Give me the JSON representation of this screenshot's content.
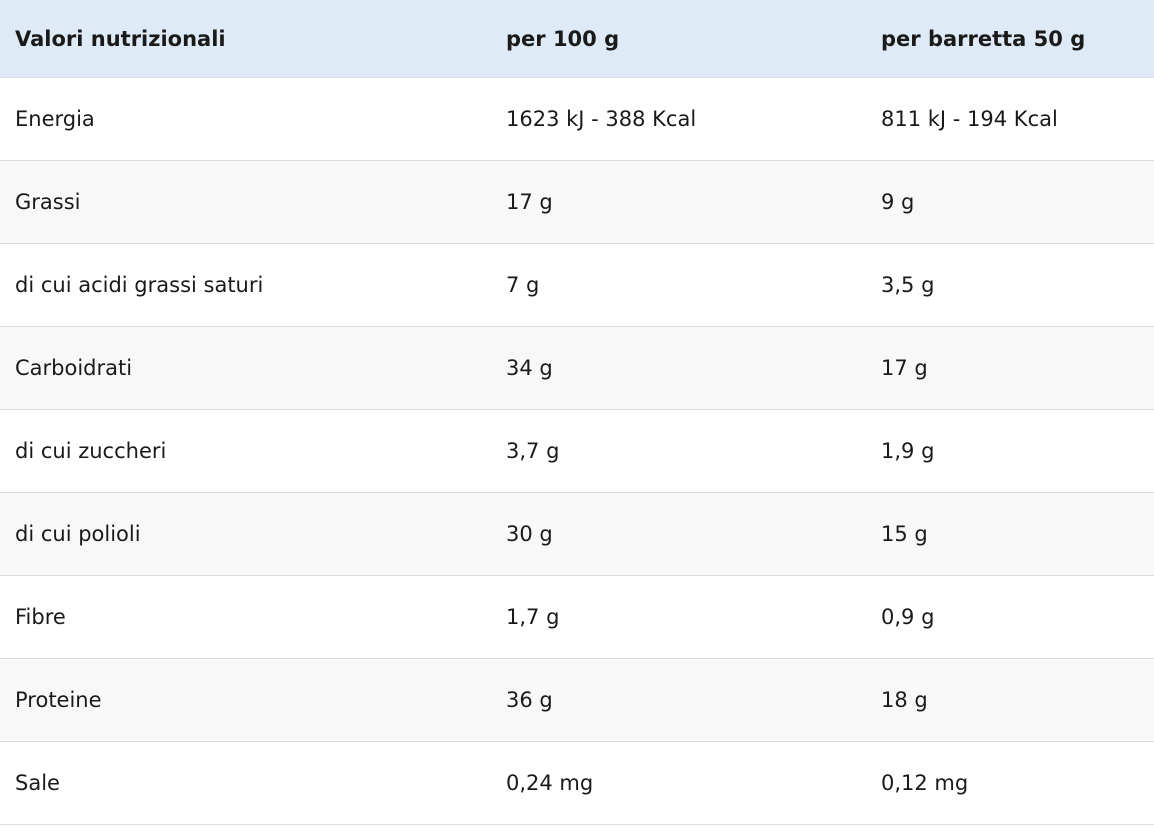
{
  "table": {
    "header": [
      "Valori nutrizionali",
      "per 100 g",
      "per barretta 50 g"
    ],
    "rows": [
      [
        "Energia",
        "1623 kJ - 388 Kcal",
        "811 kJ - 194 Kcal"
      ],
      [
        "Grassi",
        "17 g",
        "9 g"
      ],
      [
        "di cui acidi grassi saturi",
        "7 g",
        "3,5 g"
      ],
      [
        "Carboidrati",
        "34 g",
        "17 g"
      ],
      [
        "di cui zuccheri",
        "3,7 g",
        "1,9 g"
      ],
      [
        "di cui polioli",
        "30 g",
        "15 g"
      ],
      [
        "Fibre",
        "1,7 g",
        "0,9 g"
      ],
      [
        "Proteine",
        "36 g",
        "18 g"
      ],
      [
        "Sale",
        "0,24 mg",
        "0,12 mg"
      ]
    ]
  }
}
